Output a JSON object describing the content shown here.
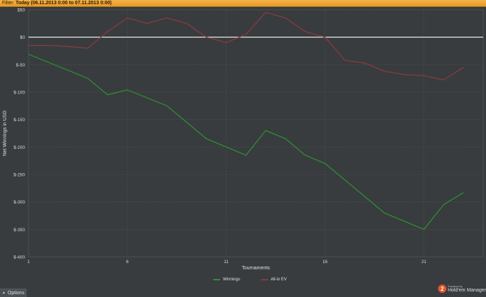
{
  "filter": {
    "label": "Filter:",
    "value": "Today (06.11.2013 0:00 to 07.11.2013 0:00)"
  },
  "options": {
    "label": "Options"
  },
  "brand": {
    "powered_by": "Powered by",
    "name": "Hold'em Manager",
    "logo_text": "2"
  },
  "colors": {
    "background": "#383c3f",
    "grid": "#4f5458",
    "zero_line": "#ffffff",
    "winnings": "#2f8f2f",
    "allin_ev": "#8b3a3e"
  },
  "chart_data": {
    "type": "line",
    "xlabel": "Tournaments",
    "ylabel": "Net Winnings in USD",
    "xlim": [
      1,
      24
    ],
    "ylim": [
      -400,
      50
    ],
    "x_ticks": [
      1,
      6,
      11,
      16,
      21
    ],
    "y_ticks": [
      50,
      0,
      -50,
      -100,
      -150,
      -200,
      -250,
      -300,
      -350,
      -400
    ],
    "y_tick_labels": [
      "$50",
      "$0",
      "$-50",
      "$-100",
      "$-150",
      "$-200",
      "$-250",
      "$-300",
      "$-350",
      "$-400"
    ],
    "grid": true,
    "legend_position": "bottom-center",
    "series": [
      {
        "name": "Winnings",
        "color": "#2f8f2f",
        "x": [
          1,
          4,
          5,
          6,
          8,
          10,
          12,
          13,
          14,
          15,
          16,
          19,
          21,
          22,
          23
        ],
        "y": [
          -31,
          -75,
          -105,
          -96,
          -125,
          -185,
          -215,
          -170,
          -185,
          -215,
          -230,
          -320,
          -350,
          -305,
          -283
        ]
      },
      {
        "name": "All-in EV",
        "color": "#8b3a3e",
        "x": [
          1,
          2,
          3,
          4,
          5,
          6,
          7,
          8,
          9,
          10,
          11,
          12,
          13,
          14,
          15,
          16,
          17,
          18,
          19,
          20,
          21,
          22,
          23
        ],
        "y": [
          -15,
          -15,
          -17,
          -20,
          10,
          35,
          25,
          35,
          25,
          0,
          -10,
          5,
          45,
          35,
          10,
          0,
          -42,
          -47,
          -62,
          -68,
          -70,
          -78,
          -55
        ]
      }
    ]
  }
}
